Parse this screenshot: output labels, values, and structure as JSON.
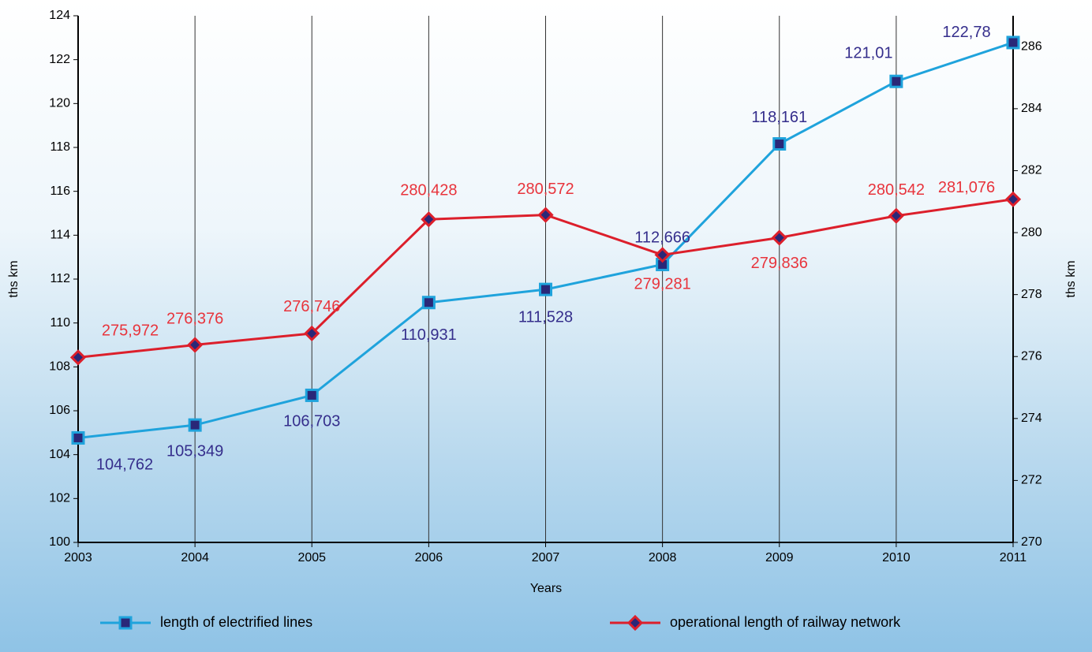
{
  "chart_data": {
    "type": "line",
    "xlabel": "Years",
    "ylabel": "ths km",
    "y2label": "ths km",
    "categories": [
      "2003",
      "2004",
      "2005",
      "2006",
      "2007",
      "2008",
      "2009",
      "2010",
      "2011"
    ],
    "series": [
      {
        "name": "length of electrified lines",
        "color": "#1fa3dc",
        "marker": "square",
        "axis": "y",
        "values": [
          104.762,
          105.349,
          106.703,
          110.931,
          111.528,
          112.666,
          118.161,
          121.01,
          122.78
        ],
        "value_labels": [
          "104,762",
          "105,349",
          "106,703",
          "110,931",
          "111,528",
          "112,666",
          "118,161",
          "121,01",
          "122,78"
        ]
      },
      {
        "name": "operational length of railway network",
        "color": "#dc1f2b",
        "marker": "diamond",
        "axis": "y2",
        "values": [
          275.972,
          276.376,
          276.746,
          280.428,
          280.572,
          279.281,
          279.836,
          280.542,
          281.076
        ],
        "value_labels": [
          "275,972",
          "276,376",
          "276,746",
          "280,428",
          "280,572",
          "279,281",
          "279,836",
          "280,542",
          "281,076"
        ]
      }
    ],
    "ylim": [
      100,
      124
    ],
    "yticks": [
      100,
      102,
      104,
      106,
      108,
      110,
      112,
      114,
      116,
      118,
      120,
      122,
      124
    ],
    "y2lim": [
      270,
      287
    ],
    "y2ticks": [
      270,
      272,
      274,
      276,
      278,
      280,
      282,
      284,
      286
    ],
    "grid": true,
    "legend": "bottom"
  }
}
